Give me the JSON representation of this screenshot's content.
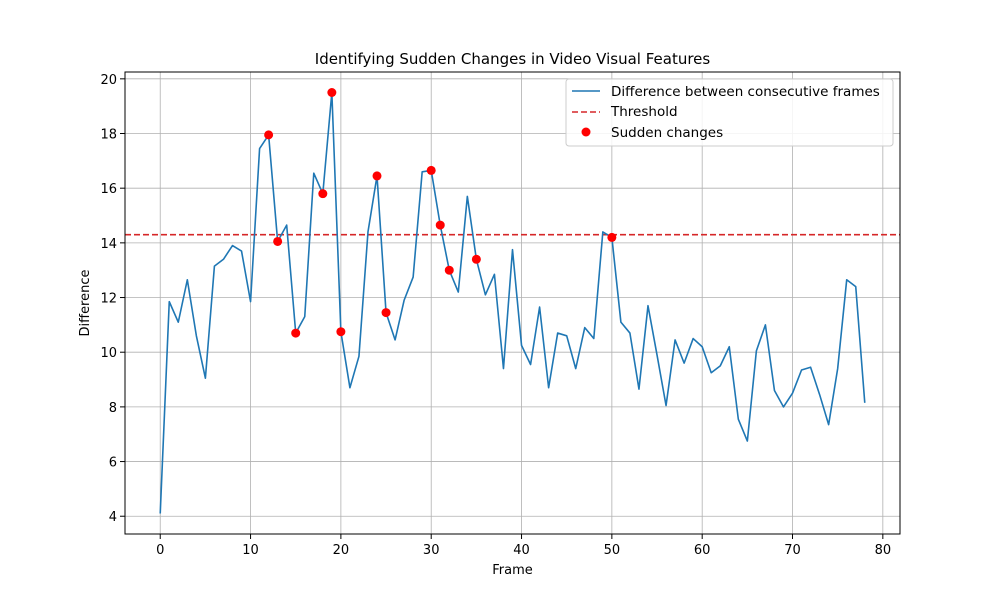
{
  "chart_data": {
    "type": "line",
    "title": "Identifying Sudden Changes in Video Visual Features",
    "xlabel": "Frame",
    "ylabel": "Difference",
    "xlim": [
      -3.9,
      81.9
    ],
    "ylim": [
      3.35,
      20.25
    ],
    "x_ticks": [
      0,
      10,
      20,
      30,
      40,
      50,
      60,
      70,
      80
    ],
    "y_ticks": [
      4,
      6,
      8,
      10,
      12,
      14,
      16,
      18,
      20
    ],
    "grid": true,
    "legend_position": "top-right",
    "colors": {
      "line": "#1f77b4",
      "threshold": "#d62728",
      "markers": "#ff0000"
    },
    "series": [
      {
        "name": "Difference between consecutive frames",
        "kind": "line",
        "x": [
          0,
          1,
          2,
          3,
          4,
          5,
          6,
          7,
          8,
          9,
          10,
          11,
          12,
          13,
          14,
          15,
          16,
          17,
          18,
          19,
          20,
          21,
          22,
          23,
          24,
          25,
          26,
          27,
          28,
          29,
          30,
          31,
          32,
          33,
          34,
          35,
          36,
          37,
          38,
          39,
          40,
          41,
          42,
          43,
          44,
          45,
          46,
          47,
          48,
          49,
          50,
          51,
          52,
          53,
          54,
          55,
          56,
          57,
          58,
          59,
          60,
          61,
          62,
          63,
          64,
          65,
          66,
          67,
          68,
          69,
          70,
          71,
          72,
          73,
          74,
          75,
          76,
          77,
          78
        ],
        "y": [
          4.1,
          11.85,
          11.1,
          12.65,
          10.6,
          9.05,
          13.15,
          13.4,
          13.9,
          13.7,
          11.85,
          17.45,
          17.95,
          14.05,
          14.65,
          10.7,
          11.3,
          16.55,
          15.8,
          19.5,
          10.75,
          8.7,
          9.85,
          14.4,
          16.45,
          11.45,
          10.45,
          11.9,
          12.75,
          16.6,
          16.65,
          14.65,
          13.0,
          12.2,
          15.7,
          13.4,
          12.1,
          12.85,
          9.4,
          13.75,
          10.25,
          9.55,
          11.65,
          8.7,
          10.7,
          10.6,
          9.4,
          10.9,
          10.5,
          14.4,
          14.2,
          11.1,
          10.7,
          8.65,
          11.7,
          9.9,
          8.05,
          10.45,
          9.6,
          10.5,
          10.2,
          9.25,
          9.5,
          10.2,
          7.55,
          6.75,
          10.05,
          11.0,
          8.6,
          8.0,
          8.5,
          9.35,
          9.45,
          8.45,
          7.35,
          9.4,
          12.65,
          12.4,
          8.15
        ]
      },
      {
        "name": "Threshold",
        "kind": "hline",
        "value": 14.3
      },
      {
        "name": "Sudden changes",
        "kind": "scatter",
        "x": [
          12,
          13,
          15,
          18,
          19,
          20,
          24,
          25,
          30,
          31,
          32,
          35,
          50
        ],
        "y": [
          17.95,
          14.05,
          10.7,
          15.8,
          19.5,
          10.75,
          16.45,
          11.45,
          16.65,
          14.65,
          13.0,
          13.4,
          14.2
        ]
      }
    ]
  }
}
